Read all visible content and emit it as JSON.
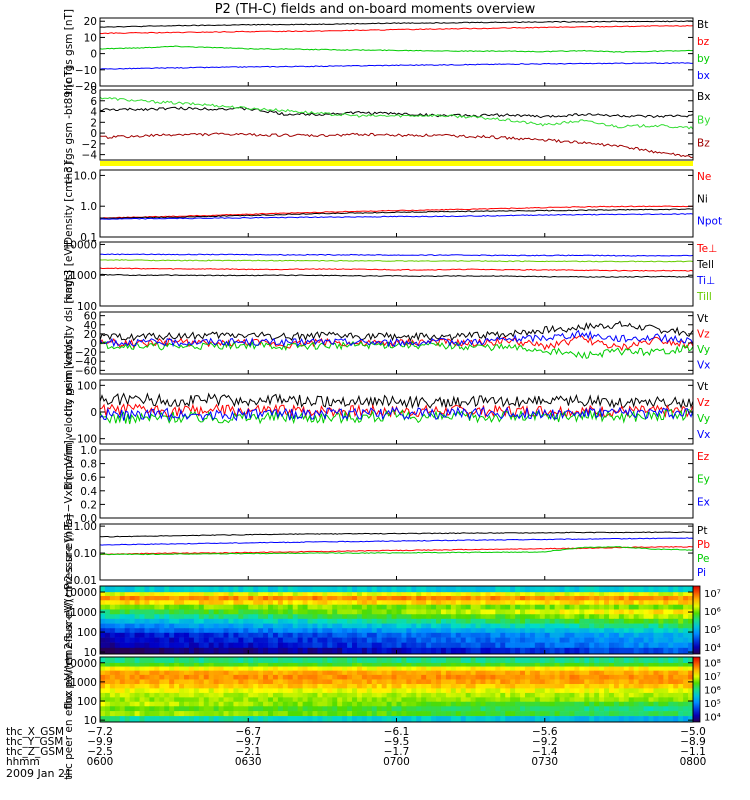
{
  "title": "P2 (TH-C) fields and on-board moments overview",
  "date_label": "2009 Jan 21",
  "colors": {
    "black": "#000000",
    "red": "#ff0000",
    "green": "#00cc00",
    "blue": "#0000ff",
    "darkred": "#a00000",
    "bright_green": "#33dd33",
    "lime": "#66cc00",
    "yellow_bar": "#ffff00"
  },
  "chart_data": [
    {
      "type": "line",
      "ylabel": "thc fgs gsm [nT]",
      "ylim": [
        -20,
        22
      ],
      "yticks": [
        "20",
        "10",
        "0",
        "−10",
        "−20"
      ],
      "ytick_values": [
        20,
        10,
        0,
        -10,
        -20
      ],
      "series": [
        {
          "name": "Bt",
          "color": "black",
          "values": [
            16.5,
            16.8,
            17.2,
            17.5,
            17.8,
            18.0,
            18.2,
            18.5,
            18.8,
            19.0,
            19.2,
            19.4,
            19.6,
            19.7,
            19.8,
            19.9,
            20.0
          ]
        },
        {
          "name": "bz",
          "color": "red",
          "values": [
            12.5,
            12.8,
            13.0,
            13.3,
            13.6,
            13.8,
            14.0,
            14.4,
            14.8,
            15.2,
            15.5,
            15.8,
            16.2,
            16.5,
            16.8,
            17.0,
            17.2
          ]
        },
        {
          "name": "by",
          "color": "green",
          "values": [
            3.0,
            3.5,
            4.5,
            3.8,
            3.0,
            2.8,
            2.5,
            2.2,
            2.0,
            1.8,
            1.5,
            1.5,
            1.2,
            1.8,
            1.0,
            1.5,
            1.8
          ]
        },
        {
          "name": "bx",
          "color": "blue",
          "values": [
            -9.5,
            -9.2,
            -8.8,
            -8.5,
            -8.2,
            -8.0,
            -7.8,
            -7.5,
            -7.2,
            -7.0,
            -6.8,
            -6.5,
            -6.3,
            -6.2,
            -6.0,
            -5.9,
            -5.8
          ]
        }
      ]
    },
    {
      "type": "line",
      "ylabel": "thc fgs gsm -bt89 [nT]",
      "ylim": [
        -5,
        8
      ],
      "yticks": [
        "8",
        "6",
        "4",
        "2",
        "0",
        "−2",
        "−4"
      ],
      "ytick_values": [
        8,
        6,
        4,
        2,
        0,
        -2,
        -4
      ],
      "series": [
        {
          "name": "Bx",
          "color": "black",
          "values": [
            4.3,
            4.4,
            4.6,
            4.5,
            4.5,
            3.5,
            3.5,
            3.8,
            3.6,
            3.3,
            3.2,
            3.4,
            3.0,
            3.5,
            3.2,
            3.0,
            3.3
          ]
        },
        {
          "name": "By",
          "color": "bright_green",
          "values": [
            6.6,
            6.0,
            5.6,
            5.2,
            4.6,
            4.2,
            3.6,
            3.2,
            3.2,
            3.3,
            3.0,
            2.4,
            1.5,
            2.3,
            1.2,
            1.4,
            0.9
          ]
        },
        {
          "name": "Bz",
          "color": "darkred",
          "values": [
            -0.8,
            -0.6,
            -0.3,
            -0.2,
            -0.3,
            -0.4,
            -0.5,
            -0.2,
            -0.4,
            -0.4,
            -0.6,
            -0.9,
            -1.3,
            -1.8,
            -2.4,
            -3.5,
            -4.5
          ]
        }
      ]
    },
    {
      "type": "line",
      "ylabel": "Density [cm−3]",
      "ylim_log": [
        0.1,
        15
      ],
      "yticks": [
        "10.0",
        "1.0",
        "0.1"
      ],
      "ytick_values": [
        10,
        1,
        0.1
      ],
      "series": [
        {
          "name": "Ne",
          "color": "red",
          "values": [
            0.42,
            0.44,
            0.47,
            0.5,
            0.55,
            0.6,
            0.64,
            0.68,
            0.72,
            0.76,
            0.8,
            0.85,
            0.9,
            0.95,
            0.98,
            1.0,
            1.0
          ]
        },
        {
          "name": "Ni",
          "color": "black",
          "values": [
            0.4,
            0.42,
            0.44,
            0.47,
            0.5,
            0.54,
            0.58,
            0.6,
            0.64,
            0.66,
            0.68,
            0.7,
            0.72,
            0.74,
            0.76,
            0.78,
            0.8
          ]
        },
        {
          "name": "Npot",
          "color": "blue",
          "values": [
            0.38,
            0.39,
            0.4,
            0.41,
            0.42,
            0.43,
            0.44,
            0.45,
            0.46,
            0.47,
            0.48,
            0.5,
            0.52,
            0.53,
            0.54,
            0.55,
            0.56
          ]
        }
      ]
    },
    {
      "type": "line",
      "ylabel": "magt3 [eV]",
      "ylim_log": [
        100,
        12000
      ],
      "yticks": [
        "10000",
        "1000",
        "100"
      ],
      "ytick_values": [
        10000,
        1000,
        100
      ],
      "series": [
        {
          "name": "Te⊥",
          "color": "red",
          "values": [
            1700,
            1650,
            1600,
            1600,
            1550,
            1550,
            1600,
            1550,
            1500,
            1500,
            1550,
            1500,
            1500,
            1450,
            1400,
            1400,
            1400
          ]
        },
        {
          "name": "Tell",
          "color": "black",
          "values": [
            1050,
            1000,
            1000,
            980,
            980,
            1000,
            980,
            950,
            950,
            930,
            950,
            930,
            900,
            880,
            880,
            900,
            880
          ]
        },
        {
          "name": "Ti⊥",
          "color": "blue",
          "values": [
            4800,
            4800,
            4700,
            4700,
            4700,
            4600,
            4600,
            4600,
            4500,
            4500,
            4500,
            4400,
            4400,
            4400,
            4300,
            4300,
            4300
          ]
        },
        {
          "name": "Till",
          "color": "lime",
          "values": [
            3100,
            3100,
            3000,
            3000,
            3000,
            2950,
            2950,
            2950,
            2900,
            2900,
            2900,
            2850,
            2850,
            2800,
            2800,
            2800,
            2800
          ]
        }
      ]
    },
    {
      "type": "line",
      "ylabel": "thc peim velocity dsl [km/s]",
      "ylim": [
        -68,
        68
      ],
      "yticks": [
        "60",
        "40",
        "20",
        "0",
        "−20",
        "−40",
        "−60"
      ],
      "ytick_values": [
        60,
        40,
        20,
        0,
        -20,
        -40,
        -60
      ],
      "series": [
        {
          "name": "Vt",
          "color": "black",
          "values": [
            12,
            14,
            15,
            16,
            18,
            14,
            16,
            15,
            14,
            13,
            15,
            20,
            28,
            35,
            40,
            30,
            22
          ]
        },
        {
          "name": "Vz",
          "color": "red",
          "values": [
            2,
            -2,
            4,
            -3,
            2,
            -4,
            3,
            -2,
            0,
            3,
            -2,
            6,
            -8,
            10,
            -12,
            8,
            -4
          ]
        },
        {
          "name": "Vy",
          "color": "green",
          "values": [
            -4,
            -6,
            -8,
            -6,
            -4,
            -8,
            -6,
            -5,
            -4,
            -6,
            -8,
            -10,
            -16,
            -28,
            -18,
            -20,
            -10
          ]
        },
        {
          "name": "Vx",
          "color": "blue",
          "values": [
            0,
            2,
            1,
            3,
            2,
            1,
            3,
            2,
            1,
            2,
            3,
            8,
            12,
            20,
            10,
            12,
            5
          ]
        }
      ]
    },
    {
      "type": "line",
      "ylabel": "thc peim velocity gsm [km/s]",
      "ylim": [
        -120,
        120
      ],
      "yticks": [
        "100",
        "0",
        "−100"
      ],
      "ytick_values": [
        100,
        0,
        -100
      ],
      "series": [
        {
          "name": "Vt",
          "color": "black",
          "values": [
            45,
            50,
            42,
            48,
            40,
            45,
            38,
            42,
            40,
            36,
            38,
            40,
            45,
            42,
            38,
            40,
            36
          ]
        },
        {
          "name": "Vz",
          "color": "red",
          "values": [
            5,
            8,
            3,
            6,
            2,
            5,
            4,
            3,
            2,
            4,
            5,
            3,
            6,
            4,
            3,
            2,
            4
          ]
        },
        {
          "name": "Vy",
          "color": "green",
          "values": [
            -20,
            -25,
            -18,
            -22,
            -20,
            -18,
            -20,
            -18,
            -16,
            -18,
            -20,
            -15,
            -18,
            -12,
            -16,
            -14,
            -10
          ]
        },
        {
          "name": "Vx",
          "color": "blue",
          "values": [
            -10,
            -12,
            -8,
            -10,
            -8,
            -10,
            -6,
            -8,
            -6,
            -5,
            -6,
            -4,
            -6,
            -4,
            -5,
            -3,
            -4
          ]
        }
      ]
    },
    {
      "type": "line",
      "ylabel": "E=−VxB [mV/m]",
      "ylim": [
        0,
        1
      ],
      "yticks": [
        "1.0",
        "0.8",
        "0.6",
        "0.4",
        "0.2",
        "0.0"
      ],
      "ytick_values": [
        1,
        0.8,
        0.6,
        0.4,
        0.2,
        0
      ],
      "series": [
        {
          "name": "Ez",
          "color": "red",
          "values": []
        },
        {
          "name": "Ey",
          "color": "green",
          "values": []
        },
        {
          "name": "Ex",
          "color": "blue",
          "values": []
        }
      ]
    },
    {
      "type": "line",
      "ylabel": "Pressure [nPa]",
      "ylim_log": [
        0.01,
        1.2
      ],
      "yticks": [
        "1.00",
        "0.10",
        "0.01"
      ],
      "ytick_values": [
        1,
        0.1,
        0.01
      ],
      "series": [
        {
          "name": "Pt",
          "color": "black",
          "values": [
            0.4,
            0.42,
            0.44,
            0.46,
            0.48,
            0.5,
            0.51,
            0.52,
            0.53,
            0.54,
            0.55,
            0.56,
            0.57,
            0.58,
            0.58,
            0.59,
            0.6
          ]
        },
        {
          "name": "Pb",
          "color": "red",
          "values": [
            0.09,
            0.095,
            0.1,
            0.1,
            0.105,
            0.11,
            0.115,
            0.12,
            0.125,
            0.13,
            0.135,
            0.14,
            0.145,
            0.15,
            0.16,
            0.17,
            0.17
          ]
        },
        {
          "name": "Pe",
          "color": "green",
          "values": [
            0.09,
            0.09,
            0.092,
            0.094,
            0.096,
            0.098,
            0.1,
            0.1,
            0.102,
            0.104,
            0.106,
            0.108,
            0.11,
            0.16,
            0.17,
            0.14,
            0.13
          ]
        },
        {
          "name": "Pi",
          "color": "blue",
          "values": [
            0.2,
            0.21,
            0.22,
            0.23,
            0.24,
            0.25,
            0.26,
            0.27,
            0.28,
            0.29,
            0.3,
            0.31,
            0.32,
            0.33,
            0.34,
            0.35,
            0.36
          ]
        }
      ]
    },
    {
      "type": "heatmap",
      "ylabel": "thc peir en eflux eV/(cm2-s-sr-eV)",
      "ylim_log": [
        8,
        20000
      ],
      "yticks": [
        "10000",
        "1000",
        "100",
        "10"
      ],
      "ytick_values": [
        10000,
        1000,
        100,
        10
      ],
      "colorbar_ticks": [
        "10⁷",
        "10⁶",
        "10⁵",
        "10⁴"
      ],
      "colorbar_values": [
        10000000,
        1000000,
        100000,
        10000
      ],
      "colorbar_range_log": [
        3.6,
        7.4
      ],
      "energy_bands": [
        12000,
        8000,
        5000,
        3000,
        1800,
        1000,
        600,
        350,
        200,
        120,
        70,
        40,
        22,
        12
      ],
      "band_levels": [
        5.2,
        6.3,
        6.8,
        6.5,
        6.0,
        5.6,
        5.3,
        5.0,
        4.7,
        4.4,
        4.1,
        4.0,
        3.9,
        3.6
      ]
    },
    {
      "type": "heatmap",
      "ylabel": "thc peer en eflux eV/(cm2-s-sr-eV)",
      "ylim_log": [
        8,
        20000
      ],
      "yticks": [
        "10000",
        "1000",
        "100",
        "10"
      ],
      "ytick_values": [
        10000,
        1000,
        100,
        10
      ],
      "colorbar_ticks": [
        "10⁸",
        "10⁷",
        "10⁶",
        "10⁵",
        "10⁴"
      ],
      "colorbar_values": [
        100000000,
        10000000,
        1000000,
        100000,
        10000
      ],
      "colorbar_range_log": [
        3.6,
        8.4
      ],
      "energy_bands": [
        12000,
        8000,
        5000,
        3000,
        1800,
        1000,
        600,
        350,
        200,
        120,
        70,
        40,
        22,
        12
      ],
      "band_levels": [
        6.0,
        6.4,
        7.1,
        7.5,
        7.6,
        7.5,
        7.3,
        7.0,
        6.8,
        6.7,
        6.9,
        6.6,
        6.8,
        6.0
      ]
    }
  ],
  "x_axis": {
    "rows": [
      {
        "label": "thc_X_GSM",
        "values": [
          "−7.2",
          "−6.7",
          "−6.1",
          "−5.6",
          "−5.0"
        ]
      },
      {
        "label": "thc_Y_GSM",
        "values": [
          "−9.9",
          "−9.7",
          "−9.5",
          "−9.2",
          "−8.9"
        ]
      },
      {
        "label": "thc_Z_GSM",
        "values": [
          "−2.5",
          "−2.1",
          "−1.7",
          "−1.4",
          "−1.1"
        ]
      },
      {
        "label": "hhmm",
        "values": [
          "0600",
          "0630",
          "0700",
          "0730",
          "0800"
        ]
      }
    ]
  }
}
